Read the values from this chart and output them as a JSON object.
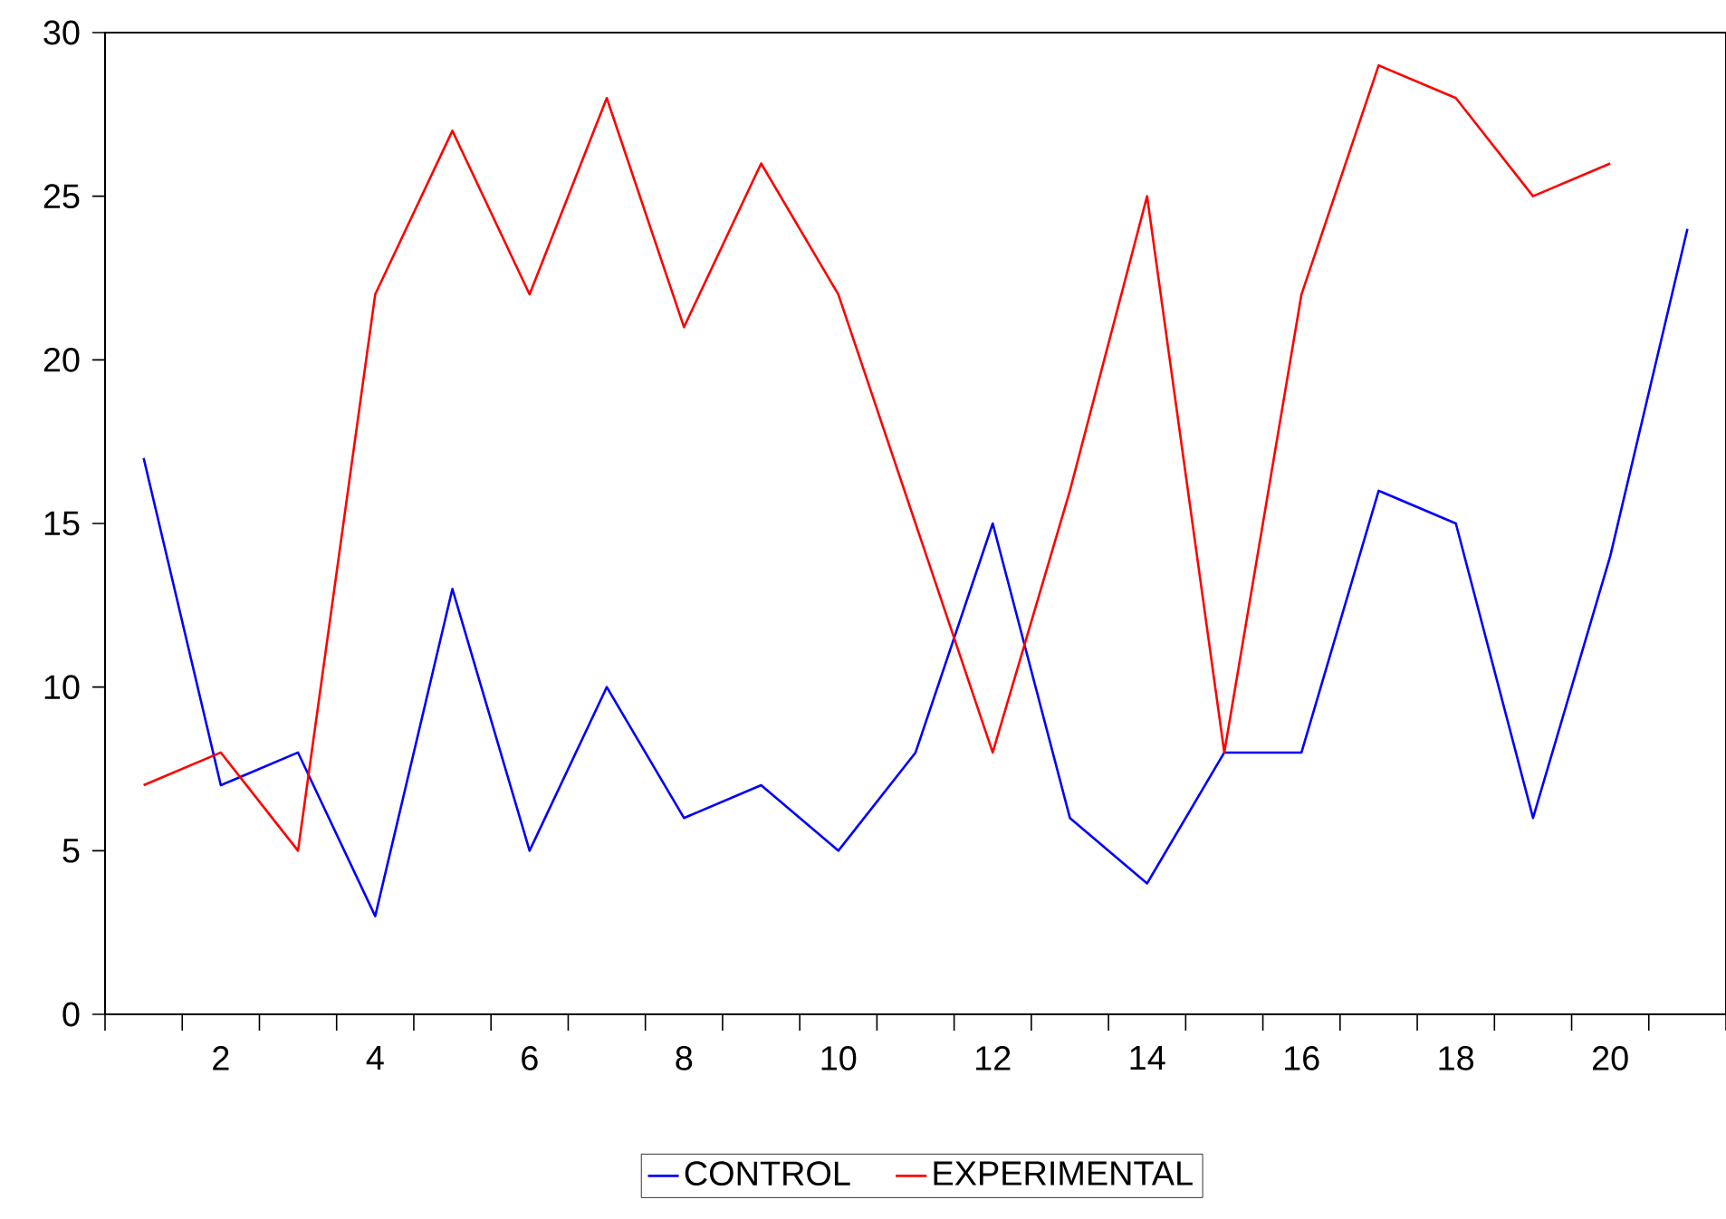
{
  "chart_data": {
    "type": "line",
    "x": [
      1,
      2,
      3,
      4,
      5,
      6,
      7,
      8,
      9,
      10,
      11,
      12,
      13,
      14,
      15,
      16,
      17,
      18,
      19,
      20,
      21
    ],
    "series": [
      {
        "name": "CONTROL",
        "color": "#0000ff",
        "values": [
          17,
          7,
          8,
          3,
          13,
          5,
          10,
          6,
          7,
          5,
          8,
          15,
          6,
          4,
          8,
          8,
          16,
          15,
          6,
          14,
          24
        ]
      },
      {
        "name": "EXPERIMENTAL",
        "color": "#ff0000",
        "values": [
          7,
          8,
          5,
          22,
          27,
          22,
          28,
          21,
          26,
          22,
          15,
          8,
          16,
          25,
          8,
          22,
          29,
          28,
          25,
          26,
          null
        ]
      }
    ],
    "xlim": [
      0.5,
      21.5
    ],
    "xticks": [
      {
        "value": 0.5,
        "label": null
      },
      {
        "value": 1.5,
        "label": null
      },
      2,
      {
        "value": 2.5,
        "label": null
      },
      {
        "value": 3.5,
        "label": null
      },
      4,
      {
        "value": 4.5,
        "label": null
      },
      {
        "value": 5.5,
        "label": null
      },
      6,
      {
        "value": 6.5,
        "label": null
      },
      {
        "value": 7.5,
        "label": null
      },
      8,
      {
        "value": 8.5,
        "label": null
      },
      {
        "value": 9.5,
        "label": null
      },
      10,
      {
        "value": 10.5,
        "label": null
      },
      {
        "value": 11.5,
        "label": null
      },
      12,
      {
        "value": 12.5,
        "label": null
      },
      {
        "value": 13.5,
        "label": null
      },
      14,
      {
        "value": 14.5,
        "label": null
      },
      {
        "value": 15.5,
        "label": null
      },
      16,
      {
        "value": 16.5,
        "label": null
      },
      {
        "value": 17.5,
        "label": null
      },
      18,
      {
        "value": 18.5,
        "label": null
      },
      {
        "value": 19.5,
        "label": null
      },
      20,
      {
        "value": 20.5,
        "label": null
      },
      {
        "value": 21.5,
        "label": null
      }
    ],
    "ylim": [
      0,
      30
    ],
    "yticks": [
      0,
      5,
      10,
      15,
      20,
      25,
      30
    ],
    "grid": false,
    "legend": "bottom",
    "marker": "none",
    "line_style": "solid"
  }
}
